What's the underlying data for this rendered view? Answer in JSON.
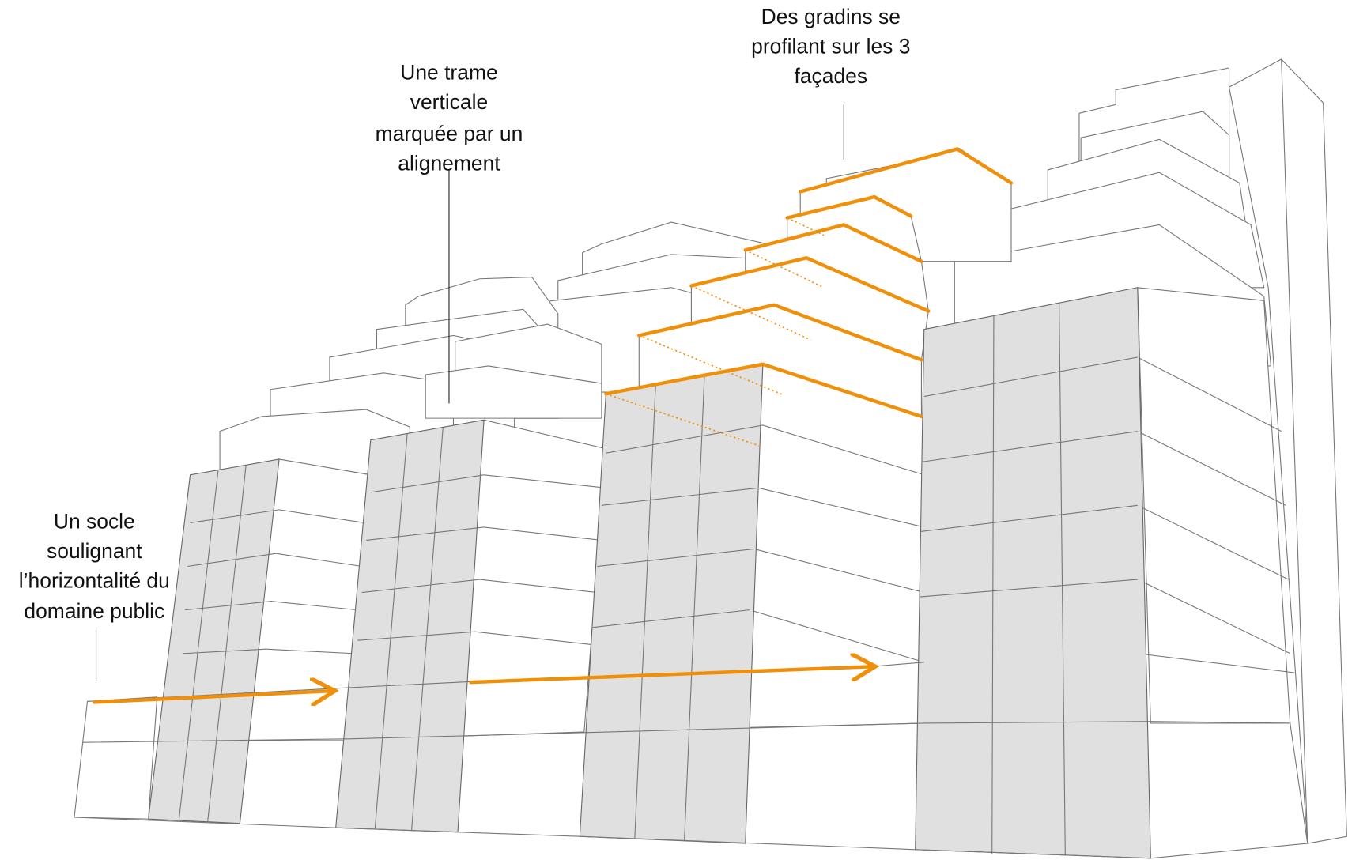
{
  "annotations": [
    {
      "lines": [
        "Des gradins  se",
        "profilant sur les 3",
        "façades"
      ]
    },
    {
      "lines": [
        "Une trame",
        "verticale",
        "marquée par un",
        "alignement"
      ]
    },
    {
      "lines": [
        "Un socle",
        "soulignant",
        "l’horizontalité du",
        "domaine public"
      ]
    }
  ]
}
